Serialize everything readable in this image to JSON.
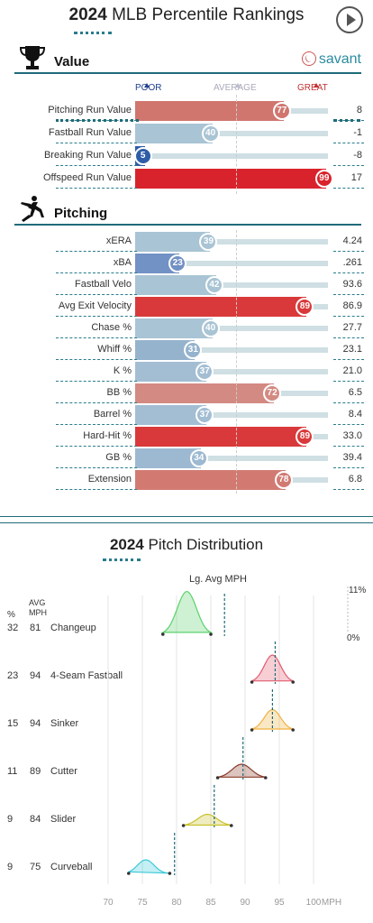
{
  "header": {
    "year": "2024",
    "title": "MLB Percentile Rankings"
  },
  "value_section": {
    "label": "Value",
    "brand": "savant",
    "scale": {
      "poor": "POOR",
      "average": "AVERAGE",
      "great": "GREAT"
    },
    "rows": [
      {
        "name": "Pitching Run Value",
        "pct": 77,
        "display": "77",
        "val": "8",
        "color": "#d0766f"
      },
      {
        "name": "Fastball Run Value",
        "pct": 40,
        "display": "40",
        "val": "-1",
        "color": "#a9c4d4"
      },
      {
        "name": "Breaking Run Value",
        "pct": 5,
        "display": "5",
        "val": "-8",
        "color": "#2e5da8"
      },
      {
        "name": "Offspeed Run Value",
        "pct": 99,
        "display": "99",
        "val": "17",
        "color": "#d9232c"
      }
    ]
  },
  "pitching_section": {
    "label": "Pitching",
    "rows": [
      {
        "name": "xERA",
        "pct": 39,
        "display": "39",
        "val": "4.24",
        "color": "#a9c4d4"
      },
      {
        "name": "xBA",
        "pct": 23,
        "display": "23",
        "val": ".261",
        "color": "#7291c4"
      },
      {
        "name": "Fastball Velo",
        "pct": 42,
        "display": "42",
        "val": "93.6",
        "color": "#a9c4d4"
      },
      {
        "name": "Avg Exit Velocity",
        "pct": 89,
        "display": "89",
        "val": "86.9",
        "color": "#d9393a"
      },
      {
        "name": "Chase %",
        "pct": 40,
        "display": "40",
        "val": "27.7",
        "color": "#a9c4d4"
      },
      {
        "name": "Whiff %",
        "pct": 31,
        "display": "31",
        "val": "23.1",
        "color": "#95b3cd"
      },
      {
        "name": "K %",
        "pct": 37,
        "display": "37",
        "val": "21.0",
        "color": "#a3bed3"
      },
      {
        "name": "BB %",
        "pct": 72,
        "display": "72",
        "val": "6.5",
        "color": "#d38a82"
      },
      {
        "name": "Barrel %",
        "pct": 37,
        "display": "37",
        "val": "8.4",
        "color": "#a3bed3"
      },
      {
        "name": "Hard-Hit %",
        "pct": 89,
        "display": "89",
        "val": "33.0",
        "color": "#d9393a"
      },
      {
        "name": "GB %",
        "pct": 34,
        "display": "34",
        "val": "39.4",
        "color": "#9db9d1"
      },
      {
        "name": "Extension",
        "pct": 78,
        "display": "78",
        "val": "6.8",
        "color": "#d27a72"
      }
    ]
  },
  "distribution": {
    "year": "2024",
    "title": "Pitch Distribution",
    "lg_label": "Lg. Avg MPH",
    "pct_head": "%",
    "avg_head_1": "AVG",
    "avg_head_2": "MPH",
    "max_label": "11%",
    "zero_label": "0%",
    "chart_data": {
      "type": "area",
      "xlim": [
        70,
        100
      ],
      "x_ticks": [
        "70",
        "75",
        "80",
        "85",
        "90",
        "95",
        "100",
        "MPH"
      ],
      "series": [
        {
          "name": "Changeup",
          "pct": "32",
          "avg": "81",
          "mean": 81.5,
          "min": 78,
          "max": 85,
          "peak": 0.95,
          "lg_avg": 87,
          "color": "#5bd26b"
        },
        {
          "name": "4-Seam Fastball",
          "pct": "23",
          "avg": "94",
          "mean": 94,
          "min": 91,
          "max": 97,
          "peak": 0.6,
          "lg_avg": 94.4,
          "color": "#e35c6f"
        },
        {
          "name": "Sinker",
          "pct": "15",
          "avg": "94",
          "mean": 94,
          "min": 91,
          "max": 97,
          "peak": 0.45,
          "lg_avg": 94,
          "color": "#f0b23f"
        },
        {
          "name": "Cutter",
          "pct": "11",
          "avg": "89",
          "mean": 89.5,
          "min": 86,
          "max": 93,
          "peak": 0.3,
          "lg_avg": 89.7,
          "color": "#8a3a2a"
        },
        {
          "name": "Slider",
          "pct": "9",
          "avg": "84",
          "mean": 84.5,
          "min": 81,
          "max": 88,
          "peak": 0.25,
          "lg_avg": 85.5,
          "color": "#c9c12a"
        },
        {
          "name": "Curveball",
          "pct": "9",
          "avg": "75",
          "mean": 75.5,
          "min": 73,
          "max": 79,
          "peak": 0.3,
          "lg_avg": 79.7,
          "color": "#3dc9d9"
        }
      ]
    }
  }
}
